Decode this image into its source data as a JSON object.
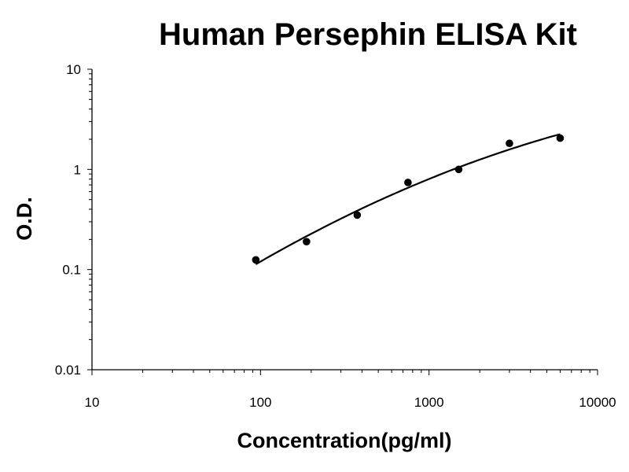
{
  "chart_data": {
    "type": "scatter",
    "title": "Human Persephin ELISA Kit",
    "xlabel": "Concentration(pg/ml)",
    "ylabel": "O.D.",
    "x_scale": "log",
    "y_scale": "log",
    "xlim": [
      10,
      10000
    ],
    "ylim": [
      0.01,
      10
    ],
    "x_ticks": [
      "10",
      "100",
      "1000",
      "10000"
    ],
    "y_ticks": [
      "10",
      "1",
      "0.1",
      "0.01"
    ],
    "grid": false,
    "legend": "none",
    "series": [
      {
        "x": [
          93.75,
          187.5,
          375,
          750,
          1500,
          3000,
          6000
        ],
        "y": [
          0.125,
          0.19,
          0.35,
          0.74,
          1.0,
          1.82,
          2.05
        ],
        "marker": "circle",
        "trendline": true
      }
    ],
    "colors": {
      "marker": "#000000",
      "line": "#000000",
      "axis": "#000000"
    }
  }
}
